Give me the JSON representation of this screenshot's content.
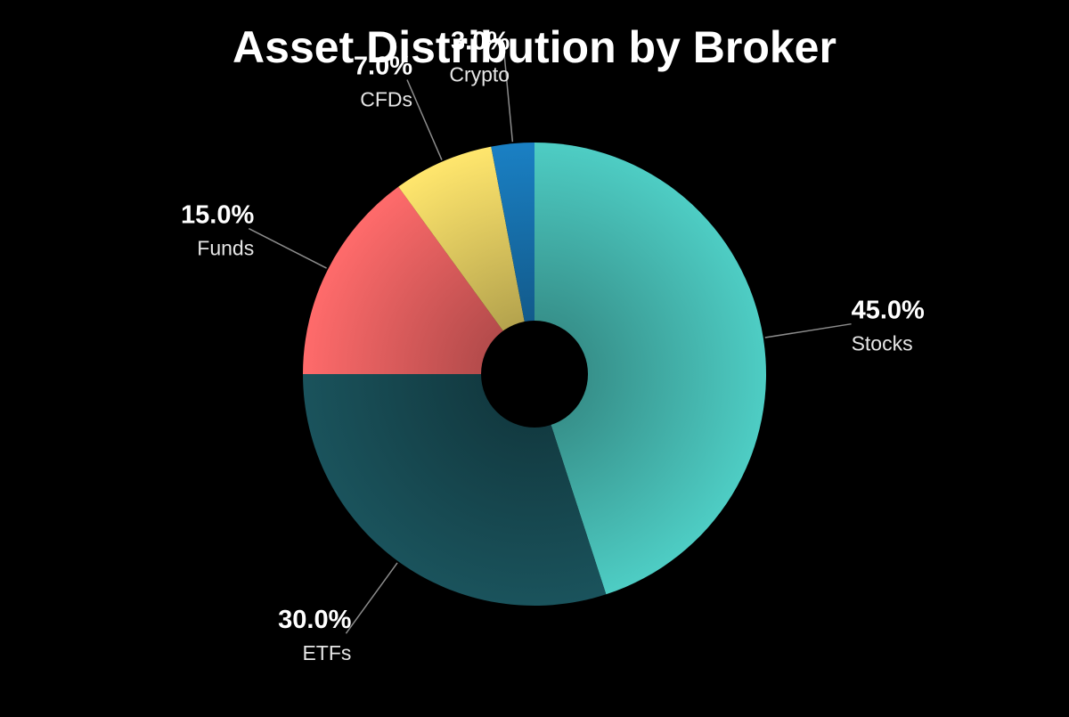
{
  "chart_data": {
    "type": "pie",
    "title": "Asset Distribution by Broker",
    "donut": true,
    "start_angle_deg": 0,
    "direction": "clockwise",
    "legend": "none",
    "categories": [
      "Stocks",
      "ETFs",
      "Funds",
      "CFDs",
      "Crypto"
    ],
    "values": [
      45.0,
      30.0,
      15.0,
      7.0,
      3.0
    ],
    "value_labels": [
      "45.0%",
      "30.0%",
      "15.0%",
      "7.0%",
      "3.0%"
    ],
    "colors": [
      "#4ecdc4",
      "#1a535c",
      "#ff6b6b",
      "#ffe66d",
      "#1a80c4"
    ],
    "background": "#000000"
  }
}
